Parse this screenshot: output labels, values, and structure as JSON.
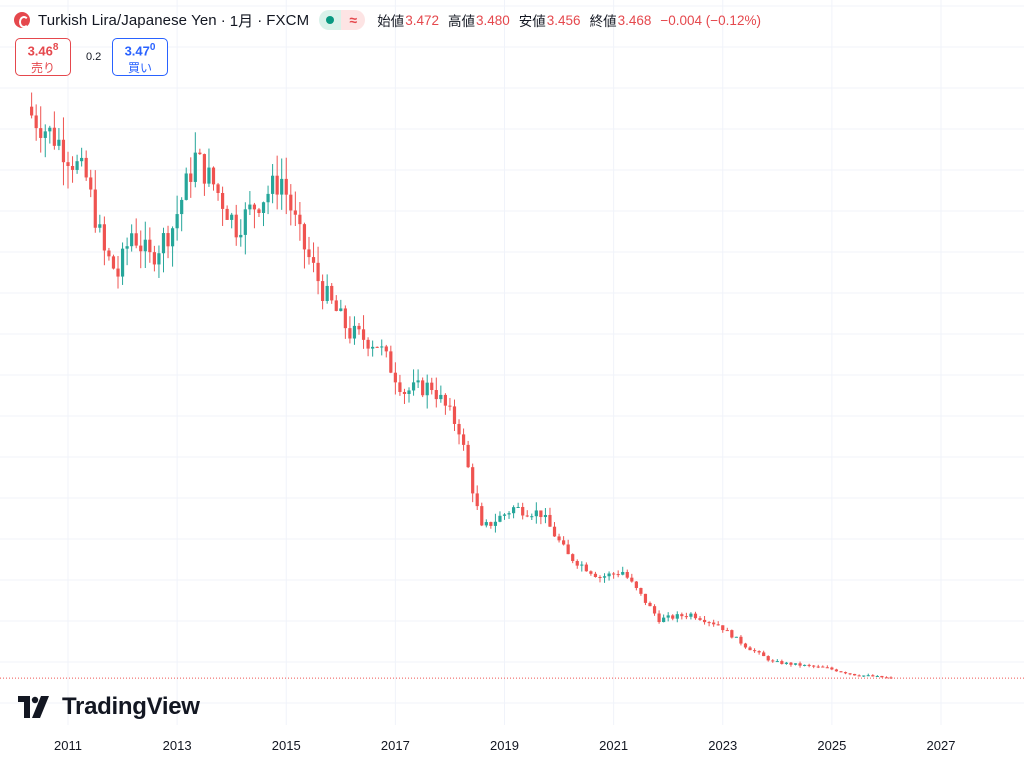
{
  "header": {
    "title": "Turkish Lira/Japanese Yen",
    "separator": "·",
    "interval": "1月",
    "exchange": "FXCM",
    "delayed_symbol": "≈",
    "ohlc": {
      "open_label": "始値",
      "open": "3.472",
      "high_label": "高値",
      "high": "3.480",
      "low_label": "安値",
      "low": "3.456",
      "close_label": "終値",
      "close": "3.468",
      "change": "−0.004 (−0.12%)"
    }
  },
  "trade": {
    "sell_price_main": "3.46",
    "sell_price_sup": "8",
    "sell_label": "売り",
    "spread": "0.2",
    "buy_price_main": "3.47",
    "buy_price_sup": "0",
    "buy_label": "買い"
  },
  "watermark": {
    "brand": "TradingView",
    "icon": "tradingview-logo-icon"
  },
  "colors": {
    "up": "#26a69a",
    "down": "#ef5350",
    "grid": "#f0f3fa",
    "price_line": "#ef5350",
    "text": "#131722"
  },
  "chart_data": {
    "type": "candlestick",
    "title": "Turkish Lira/Japanese Yen · 1月 · FXCM",
    "xlabel": "",
    "ylabel": "",
    "x_ticks": [
      "2011",
      "2013",
      "2015",
      "2017",
      "2019",
      "2021",
      "2023",
      "2025",
      "2027"
    ],
    "y_axis_visible": false,
    "grid": true,
    "last_price": 3.468,
    "approx_ylim": [
      0,
      60
    ],
    "approx_monthly_close": [
      {
        "date": "2010-05",
        "close": 56.5
      },
      {
        "date": "2010-11",
        "close": 54.0
      },
      {
        "date": "2011-05",
        "close": 50.5
      },
      {
        "date": "2011-09",
        "close": 43.5
      },
      {
        "date": "2011-12",
        "close": 41.5
      },
      {
        "date": "2012-03",
        "close": 45.5
      },
      {
        "date": "2012-07",
        "close": 43.0
      },
      {
        "date": "2012-12",
        "close": 46.0
      },
      {
        "date": "2013-05",
        "close": 52.5
      },
      {
        "date": "2013-09",
        "close": 50.0
      },
      {
        "date": "2014-02",
        "close": 46.0
      },
      {
        "date": "2014-06",
        "close": 48.0
      },
      {
        "date": "2014-12",
        "close": 50.5
      },
      {
        "date": "2015-04",
        "close": 45.0
      },
      {
        "date": "2015-09",
        "close": 40.0
      },
      {
        "date": "2016-03",
        "close": 36.0
      },
      {
        "date": "2016-09",
        "close": 35.0
      },
      {
        "date": "2017-03",
        "close": 30.5
      },
      {
        "date": "2017-09",
        "close": 31.0
      },
      {
        "date": "2018-03",
        "close": 27.0
      },
      {
        "date": "2018-08",
        "close": 17.5
      },
      {
        "date": "2019-03",
        "close": 19.5
      },
      {
        "date": "2019-09",
        "close": 19.0
      },
      {
        "date": "2020-03",
        "close": 15.0
      },
      {
        "date": "2020-10",
        "close": 13.0
      },
      {
        "date": "2021-03",
        "close": 13.5
      },
      {
        "date": "2021-11",
        "close": 9.0
      },
      {
        "date": "2022-06",
        "close": 9.5
      },
      {
        "date": "2022-12",
        "close": 8.5
      },
      {
        "date": "2023-06",
        "close": 6.5
      },
      {
        "date": "2023-12",
        "close": 5.0
      },
      {
        "date": "2024-06",
        "close": 4.7
      },
      {
        "date": "2024-12",
        "close": 4.4
      },
      {
        "date": "2025-06",
        "close": 3.8
      },
      {
        "date": "2026-02",
        "close": 3.47
      }
    ]
  }
}
